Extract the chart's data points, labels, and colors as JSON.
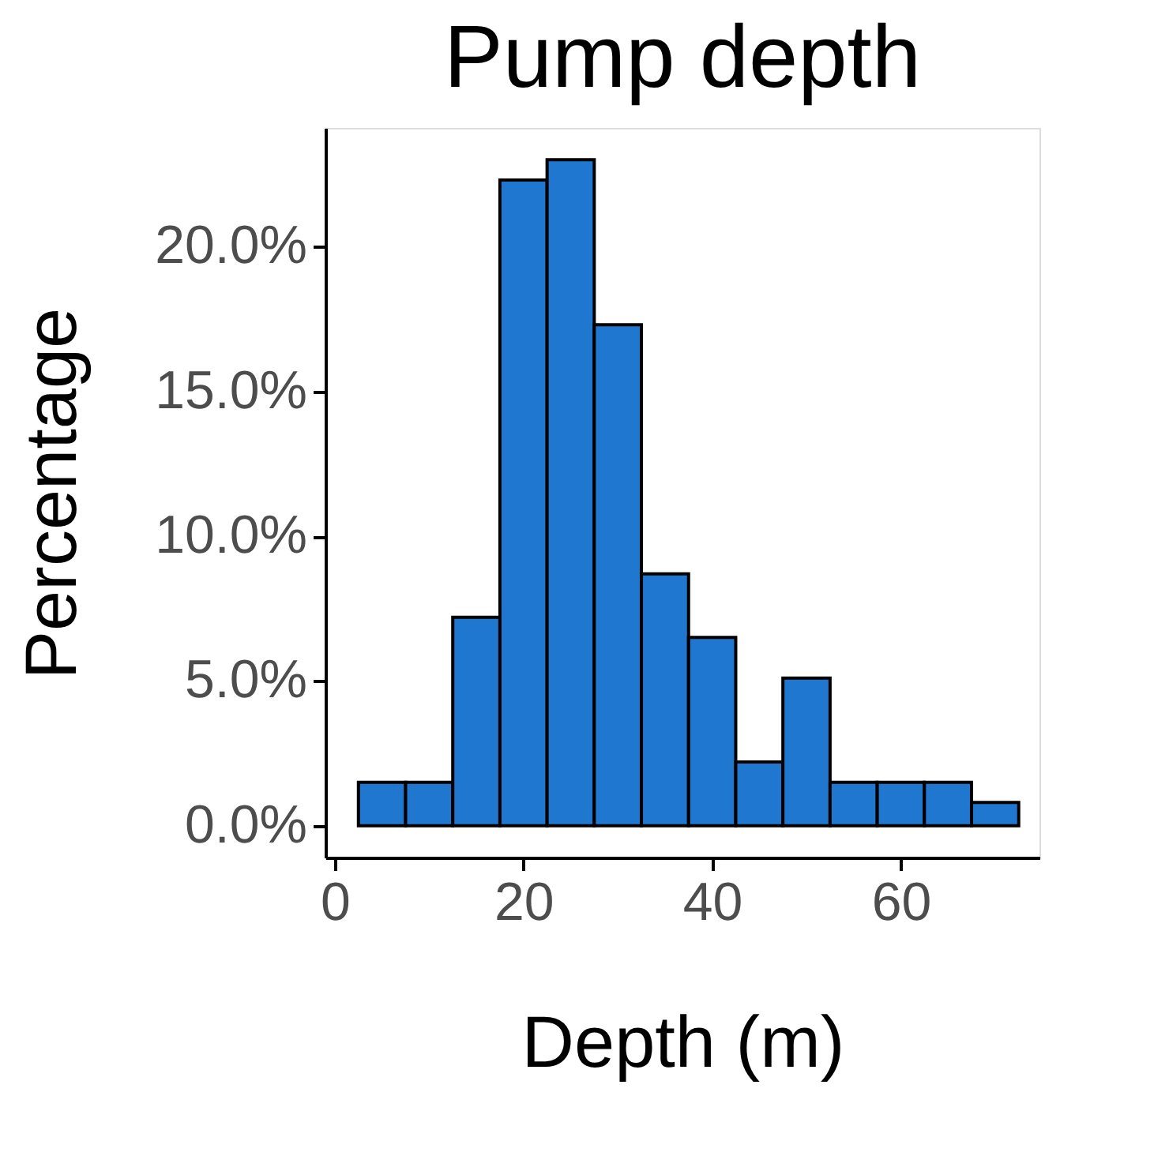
{
  "chart_data": {
    "type": "histogram",
    "title": "Pump depth",
    "xlabel": "Depth (m)",
    "ylabel": "Percentage",
    "bins": [
      2.5,
      7.5,
      12.5,
      17.5,
      22.5,
      27.5,
      32.5,
      37.5,
      42.5,
      47.5,
      52.5,
      57.5,
      62.5,
      67.5,
      72.5
    ],
    "values": [
      1.5,
      1.5,
      7.2,
      22.3,
      23.0,
      17.3,
      8.7,
      6.5,
      2.2,
      5.1,
      1.5,
      1.5,
      1.5,
      0.8
    ],
    "color": "#1f77d0",
    "xlim": [
      -1,
      74.7
    ],
    "xticks": [
      0,
      20,
      40,
      60
    ],
    "ylim": [
      -1.1,
      24.1
    ],
    "yticks": [
      {
        "value": 0,
        "label": "0.0%"
      },
      {
        "value": 5,
        "label": "5.0%"
      },
      {
        "value": 10,
        "label": "10.0%"
      },
      {
        "value": 15,
        "label": "15.0%"
      },
      {
        "value": 20,
        "label": "20.0%"
      }
    ],
    "grid": false
  }
}
